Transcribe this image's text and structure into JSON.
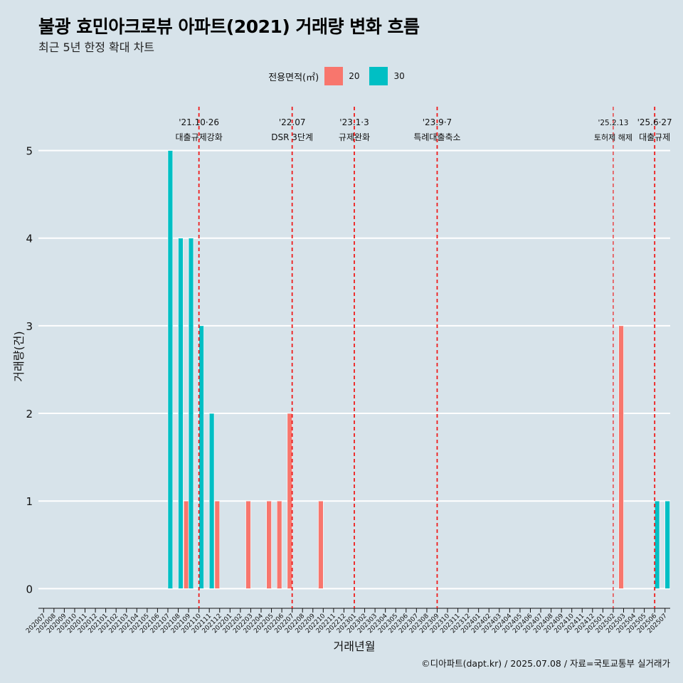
{
  "header": {
    "title": "불광 효민아크로뷰 아파트(2021) 거래량 변화 흐름",
    "subtitle": "최근 5년 한정 확대 차트"
  },
  "caption": "©디아파트(dapt.kr) / 2025.07.08 / 자료=국토교통부 실거래가",
  "legend": {
    "title": "전용면적(㎡)",
    "items": [
      {
        "label": "20",
        "color": "#f8766d"
      },
      {
        "label": "30",
        "color": "#00bfc4"
      }
    ]
  },
  "chart_data": {
    "type": "bar",
    "xlabel": "거래년월",
    "ylabel": "거래량(건)",
    "ylim": [
      -0.2,
      5.5
    ],
    "yticks": [
      0,
      1,
      2,
      3,
      4,
      5
    ],
    "grid": "horizontal",
    "categories": [
      "202007",
      "202008",
      "202009",
      "202010",
      "202011",
      "202012",
      "202101",
      "202102",
      "202103",
      "202104",
      "202105",
      "202106",
      "202107",
      "202108",
      "202109",
      "202110",
      "202111",
      "202112",
      "202201",
      "202202",
      "202203",
      "202204",
      "202205",
      "202206",
      "202207",
      "202208",
      "202209",
      "202210",
      "202211",
      "202212",
      "202301",
      "202302",
      "202303",
      "202304",
      "202305",
      "202306",
      "202307",
      "202308",
      "202309",
      "202310",
      "202311",
      "202312",
      "202401",
      "202402",
      "202403",
      "202404",
      "202405",
      "202406",
      "202407",
      "202408",
      "202409",
      "202410",
      "202411",
      "202412",
      "202501",
      "202502",
      "202503",
      "202504",
      "202505",
      "202506",
      "202507"
    ],
    "series": [
      {
        "name": "20",
        "color": "#f8766d",
        "values": {
          "202109": 1,
          "202112": 1,
          "202203": 1,
          "202205": 1,
          "202206": 1,
          "202207": 2,
          "202210": 1,
          "202503": 3
        }
      },
      {
        "name": "30",
        "color": "#00bfc4",
        "values": {
          "202107": 5,
          "202108": 4,
          "202109": 4,
          "202110": 3,
          "202111": 2,
          "202506": 1,
          "202507": 1
        }
      }
    ],
    "events": [
      {
        "month": "202110",
        "offset": 0.0,
        "date": "'21.10·26",
        "label": "대출규제강화",
        "style": "thick"
      },
      {
        "month": "202207",
        "offset": 0.0,
        "date": "'22.07",
        "label": "DSR 3단계",
        "style": "thick"
      },
      {
        "month": "202301",
        "offset": 0.0,
        "date": "'23.1·3",
        "label": "규제완화",
        "style": "thick"
      },
      {
        "month": "202309",
        "offset": 0.0,
        "date": "'23.9·7",
        "label": "특례대출축소",
        "style": "thick"
      },
      {
        "month": "202502",
        "offset": 0.0,
        "date": "'25.2.13",
        "label": "토허제 해제",
        "style": "thin"
      },
      {
        "month": "202506",
        "offset": 0.0,
        "date": "'25.6·27",
        "label": "대출규제",
        "style": "thick"
      }
    ]
  }
}
